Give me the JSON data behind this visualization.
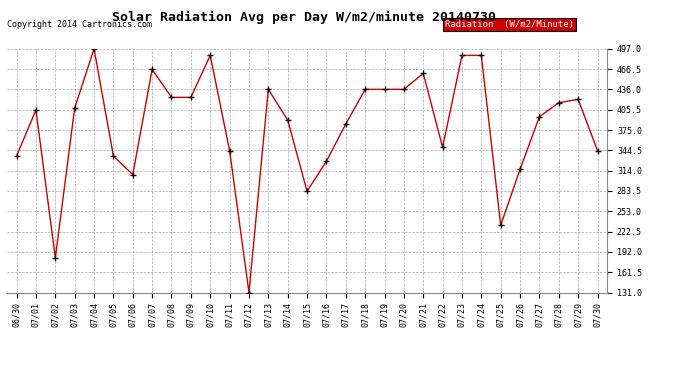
{
  "title": "Solar Radiation Avg per Day W/m2/minute 20140730",
  "copyright": "Copyright 2014 Cartronics.com",
  "legend_label": "Radiation  (W/m2/Minute)",
  "dates": [
    "06/30",
    "07/01",
    "07/02",
    "07/03",
    "07/04",
    "07/05",
    "07/06",
    "07/07",
    "07/08",
    "07/09",
    "07/10",
    "07/11",
    "07/12",
    "07/13",
    "07/14",
    "07/15",
    "07/16",
    "07/17",
    "07/18",
    "07/19",
    "07/20",
    "07/21",
    "07/22",
    "07/23",
    "07/24",
    "07/25",
    "07/26",
    "07/27",
    "07/28",
    "07/29",
    "07/30"
  ],
  "values": [
    336,
    405,
    183,
    408,
    497,
    336,
    308,
    466,
    424,
    424,
    487,
    344,
    131,
    436,
    390,
    283,
    328,
    384,
    436,
    436,
    436,
    460,
    349,
    487,
    487,
    232,
    316,
    395,
    416,
    421,
    344
  ],
  "line_color": "#cc0000",
  "marker_color": "#000000",
  "bg_color": "#ffffff",
  "grid_color": "#aaaaaa",
  "legend_bg": "#cc0000",
  "legend_text_color": "#ffffff",
  "ylim_min": 131.0,
  "ylim_max": 497.0,
  "yticks": [
    131.0,
    161.5,
    192.0,
    222.5,
    253.0,
    283.5,
    314.0,
    344.5,
    375.0,
    405.5,
    436.0,
    466.5,
    497.0
  ],
  "title_fontsize": 9.5,
  "tick_fontsize": 6,
  "copyright_fontsize": 6,
  "legend_fontsize": 6.5
}
